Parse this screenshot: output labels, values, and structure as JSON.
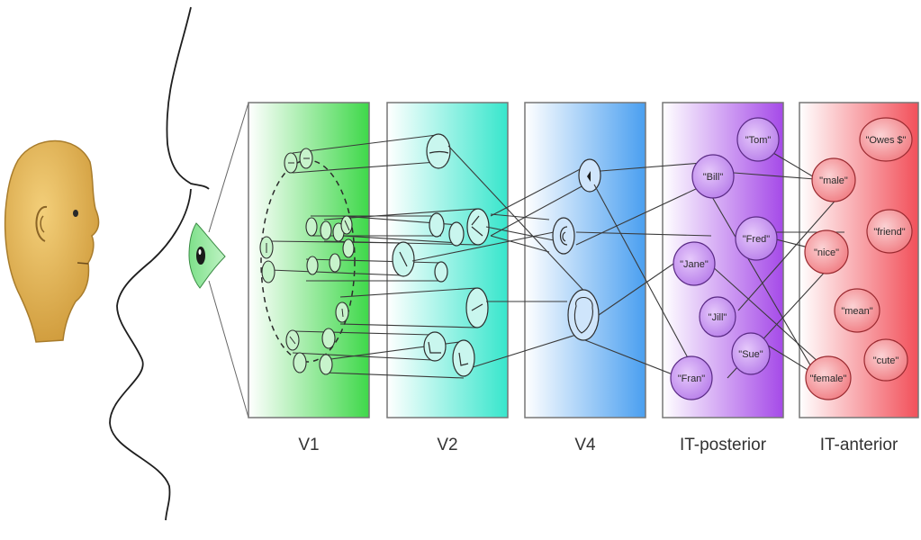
{
  "stages": [
    {
      "id": "v1",
      "label": "V1"
    },
    {
      "id": "v2",
      "label": "V2"
    },
    {
      "id": "v4",
      "label": "V4"
    },
    {
      "id": "it_post",
      "label": "IT-posterior"
    },
    {
      "id": "it_ant",
      "label": "IT-anterior"
    }
  ],
  "it_posterior_nodes": [
    {
      "id": "tom",
      "label": "\"Tom\""
    },
    {
      "id": "bill",
      "label": "\"Bill\""
    },
    {
      "id": "fred",
      "label": "\"Fred\""
    },
    {
      "id": "jane",
      "label": "\"Jane\""
    },
    {
      "id": "jill",
      "label": "\"Jill\""
    },
    {
      "id": "sue",
      "label": "\"Sue\""
    },
    {
      "id": "fran",
      "label": "\"Fran\""
    }
  ],
  "it_anterior_nodes": [
    {
      "id": "owes",
      "label": "\"Owes $\""
    },
    {
      "id": "male",
      "label": "\"male\""
    },
    {
      "id": "friend",
      "label": "\"friend\""
    },
    {
      "id": "nice",
      "label": "\"nice\""
    },
    {
      "id": "mean",
      "label": "\"mean\""
    },
    {
      "id": "cute",
      "label": "\"cute\""
    },
    {
      "id": "female",
      "label": "\"female\""
    }
  ],
  "colors": {
    "v1": "#3fd84a",
    "v2": "#37e6cc",
    "v4": "#4a9ff0",
    "it_posterior": "#a54ae8",
    "it_anterior": "#f2505a",
    "face_skin": "#e2b455",
    "posterior_node": "#c99af2",
    "anterior_node": "#f7a0a4"
  }
}
